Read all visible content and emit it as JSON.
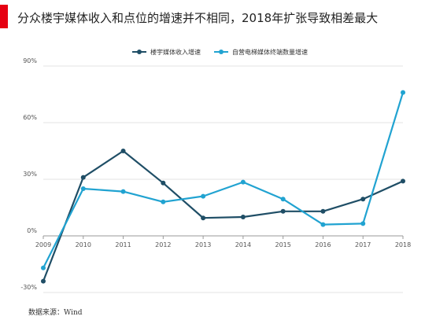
{
  "title": "分众楼宇媒体收入和点位的增速并不相同，2018年扩张导致相差最大",
  "source": "数据来源：Wind",
  "colors": {
    "accent": "#e60012",
    "series_1": "#1f4e66",
    "series_2": "#21a3d1",
    "axis": "#999999",
    "grid": "#e3e3e3",
    "tick_text": "#555555"
  },
  "chart_data": {
    "type": "line",
    "title": "",
    "xlabel": "",
    "ylabel": "",
    "x": [
      "2009",
      "2010",
      "2011",
      "2012",
      "2013",
      "2014",
      "2015",
      "2016",
      "2017",
      "2018"
    ],
    "series": [
      {
        "name": "楼宇媒体收入增速",
        "values": [
          -24,
          31,
          45,
          28,
          9.5,
          10,
          13,
          13,
          19.5,
          29
        ]
      },
      {
        "name": "自营电梯媒体终端数量增速",
        "values": [
          -17,
          25,
          23.5,
          18,
          21,
          28.5,
          19.5,
          6,
          6.5,
          76
        ]
      }
    ],
    "ylim": [
      -30,
      90
    ],
    "yticks": [
      -30,
      0,
      30,
      60,
      90
    ],
    "ytick_labels": [
      "-30%",
      "0%",
      "30%",
      "60%",
      "90%"
    ],
    "grid": "horizontal",
    "legend_position": "top-center"
  }
}
